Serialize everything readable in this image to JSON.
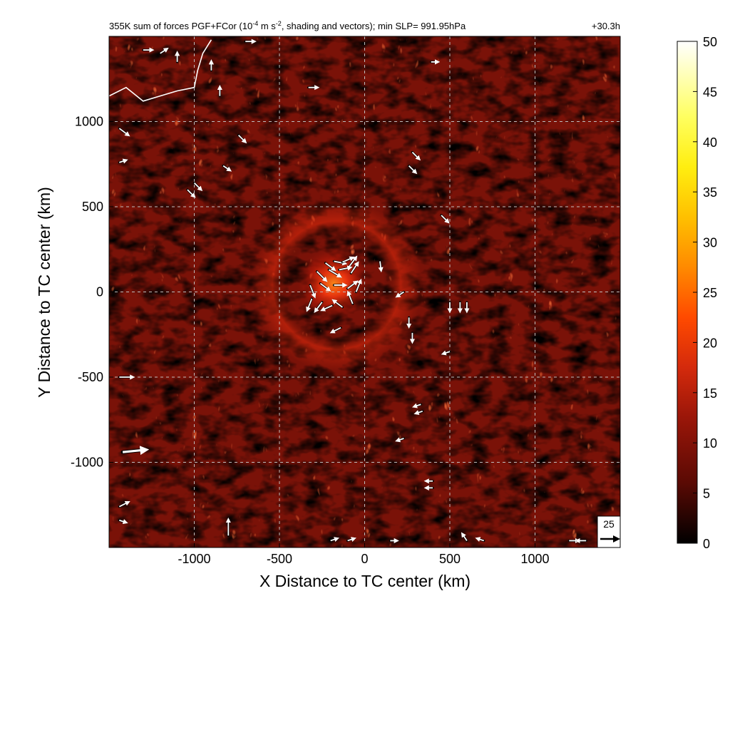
{
  "chart_data": {
    "type": "heatmap",
    "title": "355K sum of forces PGF+FCor (10",
    "title_exp": "-4",
    "title_mid": " m s",
    "title_exp2": "-2",
    "title_end": ", shading and vectors); min SLP= 991.95hPa",
    "time_label": "+30.3h",
    "xlabel": "X Distance to TC center (km)",
    "ylabel": "Y Distance to TC center (km)",
    "xlim": [
      -1500,
      1500
    ],
    "ylim": [
      -1500,
      1500
    ],
    "x_ticks": [
      -1000,
      -500,
      0,
      500,
      1000
    ],
    "y_ticks": [
      -1000,
      -500,
      0,
      500,
      1000
    ],
    "colorbar": {
      "min": 0,
      "max": 50,
      "ticks": [
        0,
        5,
        10,
        15,
        20,
        25,
        30,
        35,
        40,
        45,
        50
      ]
    },
    "reference_vector": {
      "label": "25",
      "magnitude": 25
    },
    "grid": true,
    "colors": {
      "background_low": "#000000",
      "mid": "#b81c0a",
      "high": "#ffff40",
      "max": "#ffffff"
    },
    "vectors": [
      {
        "x": -230,
        "y": 170,
        "u": 8,
        "v": -6
      },
      {
        "x": -180,
        "y": 180,
        "u": 10,
        "v": -2
      },
      {
        "x": -130,
        "y": 175,
        "u": 9,
        "v": 4
      },
      {
        "x": -90,
        "y": 150,
        "u": 6,
        "v": 8
      },
      {
        "x": -280,
        "y": 120,
        "u": 8,
        "v": -8
      },
      {
        "x": -210,
        "y": 130,
        "u": 10,
        "v": -6
      },
      {
        "x": -150,
        "y": 130,
        "u": 10,
        "v": 2
      },
      {
        "x": -80,
        "y": 110,
        "u": 6,
        "v": 9
      },
      {
        "x": -320,
        "y": 40,
        "u": 4,
        "v": -10
      },
      {
        "x": -260,
        "y": 50,
        "u": 8,
        "v": -6
      },
      {
        "x": -180,
        "y": 40,
        "u": 10,
        "v": 0
      },
      {
        "x": -100,
        "y": 20,
        "u": 8,
        "v": 6
      },
      {
        "x": -50,
        "y": 0,
        "u": 4,
        "v": 10
      },
      {
        "x": -310,
        "y": -40,
        "u": -4,
        "v": -10
      },
      {
        "x": -250,
        "y": -60,
        "u": -6,
        "v": -8
      },
      {
        "x": -190,
        "y": -80,
        "u": -9,
        "v": -4
      },
      {
        "x": -130,
        "y": -90,
        "u": -8,
        "v": 6
      },
      {
        "x": -70,
        "y": -70,
        "u": -4,
        "v": 10
      },
      {
        "x": -140,
        "y": -210,
        "u": -8,
        "v": -4
      },
      {
        "x": 90,
        "y": 180,
        "u": 1,
        "v": -8
      },
      {
        "x": 230,
        "y": 0,
        "u": -6,
        "v": -4
      },
      {
        "x": 260,
        "y": -150,
        "u": 0,
        "v": -8
      },
      {
        "x": 280,
        "y": -240,
        "u": 0,
        "v": -8
      },
      {
        "x": 500,
        "y": -350,
        "u": -6,
        "v": -2
      },
      {
        "x": 500,
        "y": -60,
        "u": 0,
        "v": -8
      },
      {
        "x": 560,
        "y": -60,
        "u": 0,
        "v": -8
      },
      {
        "x": 600,
        "y": -60,
        "u": 0,
        "v": -8
      },
      {
        "x": 450,
        "y": 450,
        "u": 6,
        "v": -6
      },
      {
        "x": 280,
        "y": 820,
        "u": 6,
        "v": -6
      },
      {
        "x": 260,
        "y": 740,
        "u": 6,
        "v": -6
      },
      {
        "x": -330,
        "y": 1200,
        "u": 8,
        "v": 0
      },
      {
        "x": 390,
        "y": 1350,
        "u": 6,
        "v": 0
      },
      {
        "x": 330,
        "y": -660,
        "u": -6,
        "v": -2
      },
      {
        "x": 340,
        "y": -700,
        "u": -6,
        "v": -2
      },
      {
        "x": 230,
        "y": -860,
        "u": -6,
        "v": -2
      },
      {
        "x": 400,
        "y": -1150,
        "u": -6,
        "v": 0
      },
      {
        "x": 400,
        "y": -1110,
        "u": -6,
        "v": 0
      },
      {
        "x": -830,
        "y": 740,
        "u": 6,
        "v": -4
      },
      {
        "x": -1040,
        "y": 600,
        "u": 6,
        "v": -6
      },
      {
        "x": -1000,
        "y": 640,
        "u": 6,
        "v": -6
      },
      {
        "x": -740,
        "y": 920,
        "u": 6,
        "v": -6
      },
      {
        "x": -1440,
        "y": 960,
        "u": 8,
        "v": -6
      },
      {
        "x": -1440,
        "y": 760,
        "u": 6,
        "v": 2
      },
      {
        "x": -1440,
        "y": -500,
        "u": 12,
        "v": 0
      },
      {
        "x": -1420,
        "y": -940,
        "u": 20,
        "v": 2
      },
      {
        "x": -1440,
        "y": -1260,
        "u": 8,
        "v": 4
      },
      {
        "x": -1440,
        "y": -1340,
        "u": 6,
        "v": -2
      },
      {
        "x": -800,
        "y": -1430,
        "u": 0,
        "v": 14
      },
      {
        "x": -1300,
        "y": 1420,
        "u": 8,
        "v": 0
      },
      {
        "x": -1200,
        "y": 1400,
        "u": 6,
        "v": 4
      },
      {
        "x": -1100,
        "y": 1350,
        "u": 0,
        "v": 8
      },
      {
        "x": -900,
        "y": 1300,
        "u": 0,
        "v": 8
      },
      {
        "x": -850,
        "y": 1150,
        "u": 0,
        "v": 8
      },
      {
        "x": -700,
        "y": 1470,
        "u": 8,
        "v": 0
      },
      {
        "x": 1200,
        "y": -1460,
        "u": 8,
        "v": 0
      },
      {
        "x": 1300,
        "y": -1460,
        "u": -8,
        "v": 0
      },
      {
        "x": 600,
        "y": -1460,
        "u": -4,
        "v": 6
      },
      {
        "x": 700,
        "y": -1460,
        "u": -6,
        "v": 2
      },
      {
        "x": -200,
        "y": -1460,
        "u": 6,
        "v": 2
      },
      {
        "x": -100,
        "y": -1460,
        "u": 6,
        "v": 2
      },
      {
        "x": 150,
        "y": -1460,
        "u": 6,
        "v": 0
      }
    ],
    "white_contour": [
      [
        -1500,
        1150
      ],
      [
        -1400,
        1200
      ],
      [
        -1300,
        1120
      ],
      [
        -1200,
        1150
      ],
      [
        -1100,
        1180
      ],
      [
        -1000,
        1200
      ],
      [
        -980,
        1300
      ],
      [
        -950,
        1400
      ],
      [
        -900,
        1480
      ]
    ]
  }
}
